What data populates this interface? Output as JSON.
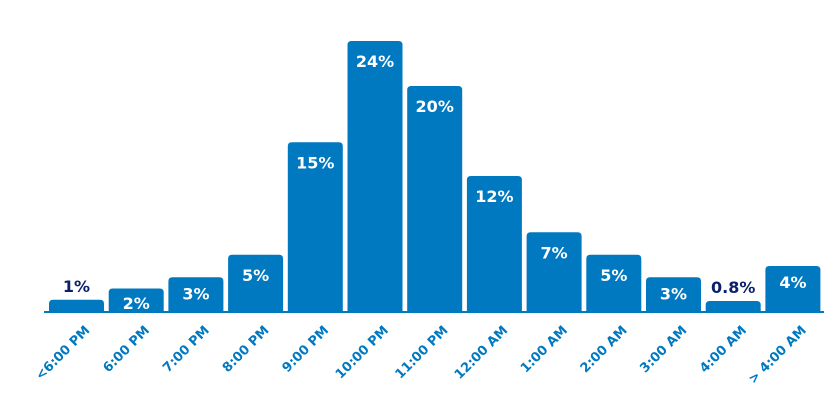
{
  "chart_data": {
    "type": "bar",
    "categories": [
      "<6:00 PM",
      "6:00 PM",
      "7:00 PM",
      "8:00 PM",
      "9:00 PM",
      "10:00 PM",
      "11:00 PM",
      "12:00 AM",
      "1:00 AM",
      "2:00 AM",
      "3:00 AM",
      "4:00 AM",
      "> 4:00 AM"
    ],
    "values": [
      1,
      2,
      3,
      5,
      15,
      24,
      20,
      12,
      7,
      5,
      3,
      0.8,
      4
    ],
    "value_labels": [
      "1%",
      "2%",
      "3%",
      "5%",
      "15%",
      "24%",
      "20%",
      "12%",
      "7%",
      "5%",
      "3%",
      "0.8%",
      "4%"
    ],
    "title": "",
    "xlabel": "",
    "ylabel": "",
    "grid": false,
    "legend": "none",
    "colors": {
      "bar": "#0079C1",
      "label_inside": "#ffffff",
      "label_outside": "#0B1F6B",
      "tick": "#0079C1"
    }
  }
}
